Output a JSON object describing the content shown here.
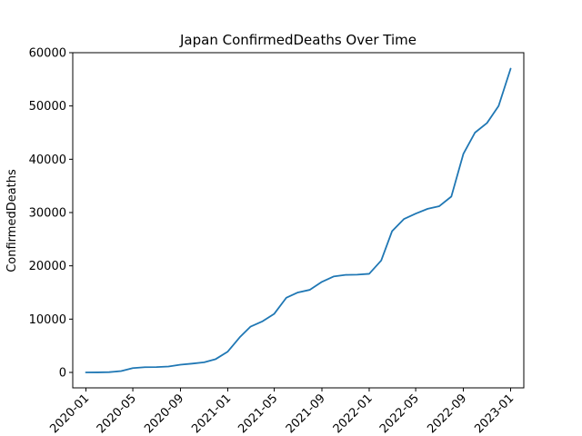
{
  "chart_data": {
    "type": "line",
    "title": "Japan  ConfirmedDeaths Over Time",
    "xlabel": "",
    "ylabel": "ConfirmedDeaths",
    "ylim": [
      -2900,
      60000
    ],
    "xlim": [
      "2019-11-28",
      "2023-02-04"
    ],
    "grid": false,
    "legend": "none",
    "line_color": "#1f77b4",
    "x_ticks": [
      {
        "date": "2020-01-01",
        "label": "2020-01"
      },
      {
        "date": "2020-05-01",
        "label": "2020-05"
      },
      {
        "date": "2020-09-01",
        "label": "2020-09"
      },
      {
        "date": "2021-01-01",
        "label": "2021-01"
      },
      {
        "date": "2021-05-01",
        "label": "2021-05"
      },
      {
        "date": "2021-09-01",
        "label": "2021-09"
      },
      {
        "date": "2022-01-01",
        "label": "2022-01"
      },
      {
        "date": "2022-05-01",
        "label": "2022-05"
      },
      {
        "date": "2022-09-01",
        "label": "2022-09"
      },
      {
        "date": "2023-01-01",
        "label": "2023-01"
      }
    ],
    "y_ticks": [
      {
        "value": 0,
        "label": "0"
      },
      {
        "value": 10000,
        "label": "10000"
      },
      {
        "value": 20000,
        "label": "20000"
      },
      {
        "value": 30000,
        "label": "30000"
      },
      {
        "value": 40000,
        "label": "40000"
      },
      {
        "value": 50000,
        "label": "50000"
      },
      {
        "value": 60000,
        "label": "60000"
      }
    ],
    "series": [
      {
        "x": [
          "2020-01-01",
          "2020-02-01",
          "2020-03-01",
          "2020-04-01",
          "2020-05-01",
          "2020-06-01",
          "2020-07-01",
          "2020-08-01",
          "2020-09-01",
          "2020-10-01",
          "2020-11-01",
          "2020-12-01",
          "2021-01-01",
          "2021-02-01",
          "2021-03-01",
          "2021-04-01",
          "2021-05-01",
          "2021-06-01",
          "2021-07-01",
          "2021-08-01",
          "2021-09-01",
          "2021-10-01",
          "2021-11-01",
          "2021-12-01",
          "2022-01-01",
          "2022-02-01",
          "2022-03-01",
          "2022-04-01",
          "2022-05-01",
          "2022-06-01",
          "2022-07-01",
          "2022-08-01",
          "2022-09-01",
          "2022-10-01",
          "2022-11-01",
          "2022-12-01",
          "2023-01-01"
        ],
        "values": [
          0,
          10,
          50,
          250,
          800,
          980,
          1000,
          1100,
          1450,
          1650,
          1900,
          2500,
          3900,
          6600,
          8600,
          9600,
          11000,
          14000,
          15000,
          15500,
          17000,
          18000,
          18300,
          18350,
          18500,
          21000,
          26500,
          28800,
          29800,
          30700,
          31200,
          33000,
          41000,
          45000,
          46800,
          50000,
          57000
        ]
      }
    ]
  }
}
